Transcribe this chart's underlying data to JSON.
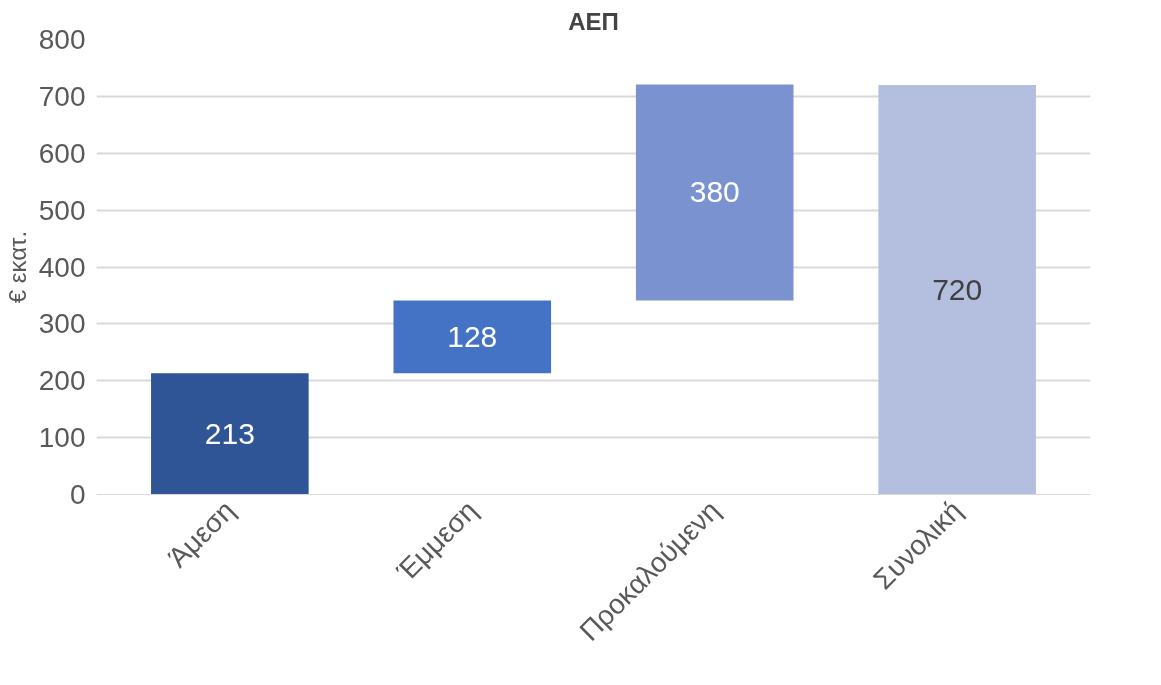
{
  "chart_data": {
    "type": "bar",
    "title": "ΑΕΠ",
    "ylabel": "€ εκατ.",
    "categories": [
      "Άμεση",
      "Έμμεση",
      "Προκαλούμενη",
      "Συνολική"
    ],
    "values": [
      213,
      128,
      380,
      720
    ],
    "base": [
      0,
      213,
      341,
      0
    ],
    "colors": [
      "#2f5597",
      "#4472c4",
      "#7a93d0",
      "#b4bfe0"
    ],
    "ylim": [
      0,
      800
    ],
    "yticks": [
      0,
      100,
      200,
      300,
      400,
      500,
      600,
      700,
      800
    ],
    "grid": "y",
    "data_labels": true
  }
}
